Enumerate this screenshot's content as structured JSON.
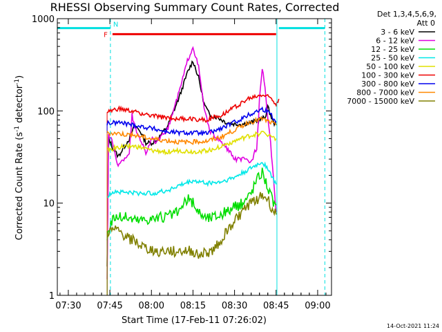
{
  "chart_data": {
    "type": "line",
    "title": "RHESSI Observing Summary Count Rates, Corrected",
    "xlabel": "Start Time (17-Feb-11 07:26:02)",
    "ylabel_main": "Corrected Count Rate (s",
    "ylabel_sup1": "-1",
    "ylabel_mid": " detector",
    "ylabel_sup2": "-1",
    "ylabel_end": ")",
    "yscale": "log",
    "ylim": [
      1,
      1000
    ],
    "xlim_minutes": [
      26.03,
      125.0
    ],
    "x_ticks": [
      {
        "label": "07:30",
        "min": 30
      },
      {
        "label": "07:45",
        "min": 45
      },
      {
        "label": "08:00",
        "min": 60
      },
      {
        "label": "08:15",
        "min": 75
      },
      {
        "label": "08:30",
        "min": 90
      },
      {
        "label": "08:45",
        "min": 105
      },
      {
        "label": "09:00",
        "min": 120
      }
    ],
    "y_ticks": [
      {
        "label": "1",
        "v": 1
      },
      {
        "label": "10",
        "v": 10
      },
      {
        "label": "100",
        "v": 100
      },
      {
        "label": "1000",
        "v": 1000
      }
    ],
    "legend_header": [
      "Det 1,3,4,5,6,9,",
      "Att 0"
    ],
    "legend_placement": "right",
    "series": [
      {
        "name": "3 - 6 keV",
        "color": "#000000",
        "points": [
          [
            44,
            2.0
          ],
          [
            44.5,
            50
          ],
          [
            46,
            40
          ],
          [
            48,
            32
          ],
          [
            50,
            40
          ],
          [
            52,
            50
          ],
          [
            54,
            70
          ],
          [
            56,
            60
          ],
          [
            58,
            45
          ],
          [
            60,
            45
          ],
          [
            62,
            48
          ],
          [
            66,
            70
          ],
          [
            70,
            140
          ],
          [
            73,
            260
          ],
          [
            75,
            350
          ],
          [
            77,
            230
          ],
          [
            79,
            120
          ],
          [
            81,
            90
          ],
          [
            84,
            85
          ],
          [
            87,
            75
          ],
          [
            90,
            72
          ],
          [
            93,
            72
          ],
          [
            96,
            75
          ],
          [
            99,
            80
          ],
          [
            101,
            85
          ],
          [
            102,
            110
          ],
          [
            103,
            90
          ],
          [
            104,
            75
          ],
          [
            105,
            70
          ]
        ]
      },
      {
        "name": "6 - 12 keV",
        "color": "#e000e0",
        "points": [
          [
            44,
            1.5
          ],
          [
            44.5,
            55
          ],
          [
            46,
            45
          ],
          [
            48,
            25
          ],
          [
            50,
            30
          ],
          [
            52,
            35
          ],
          [
            53,
            90
          ],
          [
            54,
            65
          ],
          [
            56,
            50
          ],
          [
            58,
            35
          ],
          [
            60,
            50
          ],
          [
            62,
            45
          ],
          [
            66,
            65
          ],
          [
            70,
            160
          ],
          [
            73,
            350
          ],
          [
            75,
            500
          ],
          [
            77,
            300
          ],
          [
            79,
            110
          ],
          [
            81,
            60
          ],
          [
            84,
            50
          ],
          [
            87,
            40
          ],
          [
            90,
            30
          ],
          [
            93,
            30
          ],
          [
            96,
            28
          ],
          [
            98,
            40
          ],
          [
            99,
            130
          ],
          [
            100,
            300
          ],
          [
            101,
            180
          ],
          [
            102,
            80
          ],
          [
            103,
            45
          ],
          [
            104,
            20
          ],
          [
            105,
            8
          ]
        ]
      },
      {
        "name": "12 - 25 keV",
        "color": "#00dd00",
        "points": [
          [
            44,
            4.3
          ],
          [
            46,
            7.0
          ],
          [
            50,
            7.1
          ],
          [
            55,
            6.5
          ],
          [
            60,
            6.8
          ],
          [
            65,
            7.0
          ],
          [
            70,
            8.0
          ],
          [
            73,
            11
          ],
          [
            75,
            10
          ],
          [
            77,
            8
          ],
          [
            80,
            6.8
          ],
          [
            85,
            7.5
          ],
          [
            90,
            9
          ],
          [
            93,
            10
          ],
          [
            96,
            13
          ],
          [
            98,
            18
          ],
          [
            100,
            22
          ],
          [
            102,
            15
          ],
          [
            104,
            10
          ],
          [
            105,
            9.5
          ]
        ]
      },
      {
        "name": "25 - 50 keV",
        "color": "#00e8e8",
        "points": [
          [
            44,
            11.5
          ],
          [
            46,
            13.5
          ],
          [
            50,
            13.2
          ],
          [
            55,
            12.8
          ],
          [
            60,
            12.8
          ],
          [
            65,
            13.5
          ],
          [
            70,
            15.5
          ],
          [
            75,
            17.5
          ],
          [
            80,
            16.5
          ],
          [
            85,
            17
          ],
          [
            90,
            19
          ],
          [
            95,
            23
          ],
          [
            100,
            28
          ],
          [
            102,
            24
          ],
          [
            104,
            18
          ],
          [
            105,
            16
          ]
        ]
      },
      {
        "name": "50 - 100 keV",
        "color": "#e0e000",
        "points": [
          [
            44,
            38
          ],
          [
            48,
            40
          ],
          [
            52,
            42
          ],
          [
            56,
            40
          ],
          [
            60,
            37
          ],
          [
            65,
            36
          ],
          [
            70,
            37
          ],
          [
            75,
            36
          ],
          [
            80,
            37
          ],
          [
            85,
            41
          ],
          [
            90,
            47
          ],
          [
            95,
            53
          ],
          [
            100,
            58
          ],
          [
            102,
            56
          ],
          [
            104,
            52
          ],
          [
            105,
            50
          ]
        ]
      },
      {
        "name": "100 - 300 keV",
        "color": "#ee0000",
        "points": [
          [
            44,
            97
          ],
          [
            48,
            105
          ],
          [
            52,
            100
          ],
          [
            56,
            95
          ],
          [
            60,
            88
          ],
          [
            65,
            85
          ],
          [
            70,
            82
          ],
          [
            75,
            82
          ],
          [
            80,
            80
          ],
          [
            85,
            90
          ],
          [
            90,
            110
          ],
          [
            95,
            135
          ],
          [
            100,
            150
          ],
          [
            103,
            140
          ],
          [
            105,
            120
          ],
          [
            106,
            135
          ]
        ]
      },
      {
        "name": "300 - 800 keV",
        "color": "#0000ee",
        "points": [
          [
            44,
            73
          ],
          [
            48,
            75
          ],
          [
            52,
            72
          ],
          [
            56,
            68
          ],
          [
            60,
            65
          ],
          [
            65,
            60
          ],
          [
            70,
            58
          ],
          [
            75,
            58
          ],
          [
            80,
            57
          ],
          [
            85,
            64
          ],
          [
            90,
            75
          ],
          [
            95,
            90
          ],
          [
            100,
            105
          ],
          [
            103,
            95
          ],
          [
            105,
            75
          ]
        ]
      },
      {
        "name": "800 - 7000 keV",
        "color": "#ff8800",
        "points": [
          [
            44,
            58
          ],
          [
            48,
            57
          ],
          [
            52,
            55
          ],
          [
            56,
            53
          ],
          [
            60,
            50
          ],
          [
            65,
            48
          ],
          [
            70,
            46
          ],
          [
            75,
            46
          ],
          [
            80,
            47
          ],
          [
            85,
            52
          ],
          [
            90,
            62
          ],
          [
            95,
            75
          ],
          [
            100,
            82
          ],
          [
            103,
            75
          ],
          [
            105,
            70
          ]
        ]
      },
      {
        "name": "7000 - 15000 keV",
        "color": "#808000",
        "points": [
          [
            44,
            4.8
          ],
          [
            46,
            5.0
          ],
          [
            48,
            5.0
          ],
          [
            50,
            4.5
          ],
          [
            54,
            3.8
          ],
          [
            58,
            3.2
          ],
          [
            62,
            3.0
          ],
          [
            66,
            3.0
          ],
          [
            70,
            3.0
          ],
          [
            74,
            3.0
          ],
          [
            78,
            2.8
          ],
          [
            82,
            3.0
          ],
          [
            85,
            4.0
          ],
          [
            90,
            6.5
          ],
          [
            95,
            9.5
          ],
          [
            100,
            12
          ],
          [
            102,
            11
          ],
          [
            104,
            8
          ],
          [
            105,
            7.5
          ]
        ]
      }
    ],
    "annotations": {
      "flare_flag": {
        "label": "F",
        "x_start": 45.2,
        "x_end": 105.0,
        "level": 680,
        "color": "#ee0000"
      },
      "night_flag": {
        "label": "N",
        "level": 790,
        "color": "#00e0e0",
        "segments": [
          [
            26.03,
            45.2
          ],
          [
            106.0,
            122.6
          ]
        ]
      },
      "night_lines": [
        45.2,
        105.3,
        122.6
      ]
    },
    "timestamp": "14-Oct-2021 11:24"
  }
}
